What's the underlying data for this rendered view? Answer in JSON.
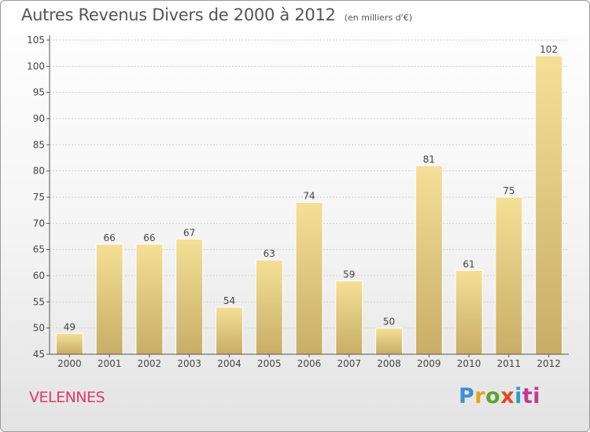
{
  "title": "Autres Revenus Divers de 2000 à 2012",
  "subtitle": "(en milliers d'€)",
  "location": "VELENNES",
  "brand": {
    "text": "Proxiti",
    "letters": [
      "P",
      "r",
      "o",
      "x",
      "i",
      "ti"
    ]
  },
  "colors": {
    "bar_light": "#f5df96",
    "bar_dark": "#c8ad66",
    "title": "#555555",
    "location": "#e03a6a",
    "grid": "#cfcfcf",
    "axis": "#555555"
  },
  "chart_data": {
    "type": "bar",
    "categories": [
      "2000",
      "2001",
      "2002",
      "2003",
      "2004",
      "2005",
      "2006",
      "2007",
      "2008",
      "2009",
      "2010",
      "2011",
      "2012"
    ],
    "values": [
      49,
      66,
      66,
      67,
      54,
      63,
      74,
      59,
      50,
      81,
      61,
      75,
      102
    ],
    "data_labels": [
      "49",
      "66",
      "66",
      "67",
      "54",
      "63",
      "74",
      "59",
      "50",
      "81",
      "61",
      "75",
      "102"
    ],
    "ylim": [
      45,
      105
    ],
    "yticks": [
      45,
      50,
      55,
      60,
      65,
      70,
      75,
      80,
      85,
      90,
      95,
      100,
      105
    ],
    "grid": true,
    "xlabel": "",
    "ylabel": ""
  }
}
